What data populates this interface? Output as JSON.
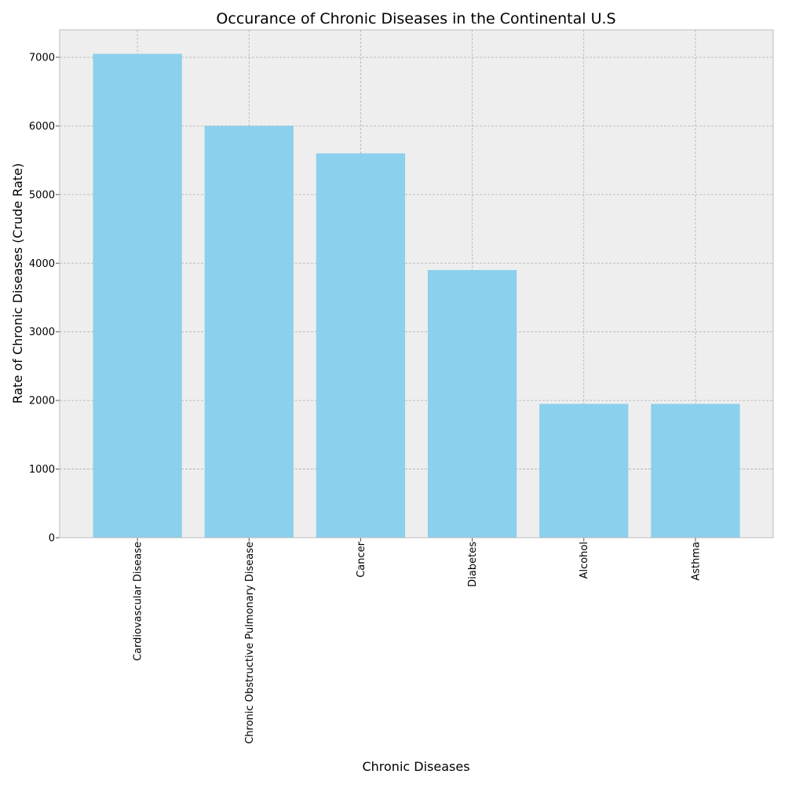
{
  "chart_data": {
    "type": "bar",
    "title": "Occurance of Chronic Diseases in the Continental U.S",
    "xlabel": "Chronic Diseases",
    "ylabel": "Rate of Chronic Diseases (Crude Rate)",
    "categories": [
      "Cardiovascular Disease",
      "Chronic Obstructive Pulmonary Disease",
      "Cancer",
      "Diabetes",
      "Alcohol",
      "Asthma"
    ],
    "values": [
      7050,
      6000,
      5600,
      3900,
      1950,
      1950
    ],
    "ylim": [
      0,
      7400
    ],
    "yticks": [
      0,
      1000,
      2000,
      3000,
      4000,
      5000,
      6000,
      7000
    ],
    "grid": true,
    "bar_color": "#87CEEB",
    "plot_background": "#EEEEEE"
  }
}
